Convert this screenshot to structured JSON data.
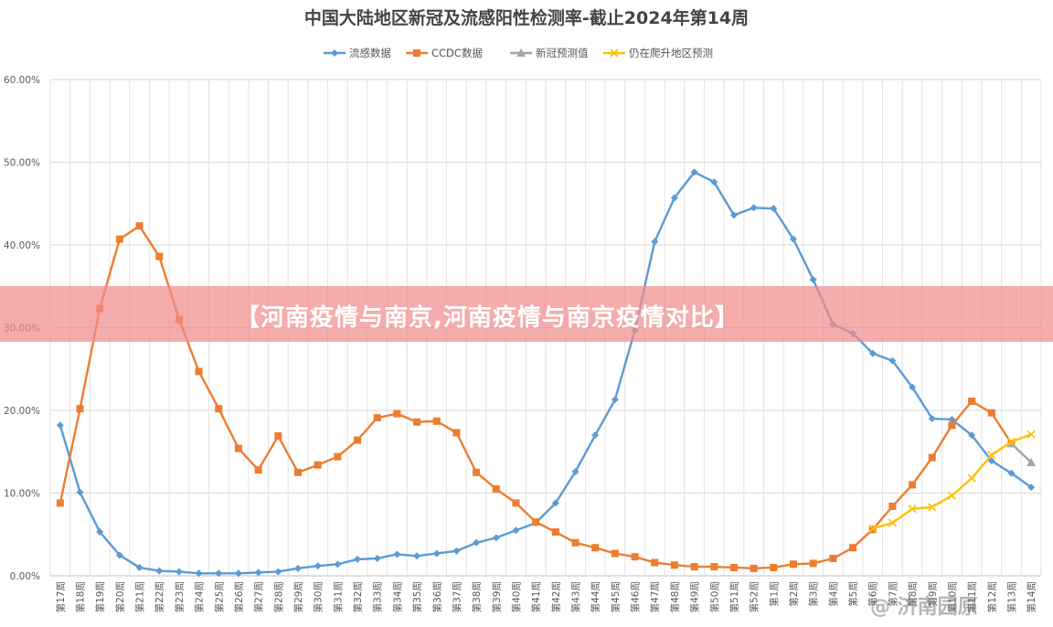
{
  "chart_data": {
    "type": "line",
    "title": "中国大陆地区新冠及流感阳性检测率-截止2024年第14周",
    "yticks": [
      "0.00%",
      "10.00%",
      "20.00%",
      "30.00%",
      "40.00%",
      "50.00%",
      "60.00%"
    ],
    "ylim": [
      0,
      60
    ],
    "grid": true,
    "legend_position": "top",
    "categories": [
      "第17周",
      "第18周",
      "第19周",
      "第20周",
      "第21周",
      "第22周",
      "第23周",
      "第24周",
      "第25周",
      "第26周",
      "第27周",
      "第28周",
      "第29周",
      "第30周",
      "第31周",
      "第32周",
      "第33周",
      "第34周",
      "第35周",
      "第36周",
      "第37周",
      "第38周",
      "第39周",
      "第40周",
      "第41周",
      "第42周",
      "第43周",
      "第44周",
      "第45周",
      "第46周",
      "第47周",
      "第48周",
      "第49周",
      "第50周",
      "第51周",
      "第52周",
      "第1周",
      "第2周",
      "第3周",
      "第4周",
      "第5周",
      "第6周",
      "第7周",
      "第8周",
      "第9周",
      "第10周",
      "第11周",
      "第12周",
      "第13周",
      "第14周"
    ],
    "series": [
      {
        "name": "流感数据",
        "color": "#5b9bd5",
        "marker": "diamond",
        "values": [
          18.2,
          10.1,
          5.3,
          2.5,
          1.0,
          0.6,
          0.5,
          0.3,
          0.3,
          0.3,
          0.4,
          0.5,
          0.9,
          1.2,
          1.4,
          2.0,
          2.1,
          2.6,
          2.4,
          2.7,
          3.0,
          4.0,
          4.6,
          5.5,
          6.4,
          8.8,
          12.6,
          17.0,
          21.3,
          29.7,
          40.4,
          45.7,
          48.8,
          47.6,
          43.6,
          44.5,
          44.4,
          40.7,
          35.8,
          30.4,
          29.3,
          26.9,
          26.0,
          22.8,
          19.0,
          18.9,
          17.0,
          13.9,
          12.4,
          10.7
        ]
      },
      {
        "name": "CCDC数据",
        "color": "#ed7d31",
        "marker": "square",
        "values": [
          8.8,
          20.2,
          32.3,
          40.7,
          42.3,
          38.6,
          31.0,
          24.7,
          20.2,
          15.4,
          12.8,
          16.9,
          12.5,
          13.4,
          14.4,
          16.4,
          19.1,
          19.6,
          18.6,
          18.7,
          17.3,
          12.5,
          10.5,
          8.8,
          6.5,
          5.3,
          4.0,
          3.4,
          2.7,
          2.3,
          1.6,
          1.3,
          1.1,
          1.1,
          1.0,
          0.9,
          1.0,
          1.4,
          1.5,
          2.1,
          3.4,
          5.6,
          8.4,
          11.0,
          14.3,
          18.2,
          21.1,
          19.7,
          16.0,
          null
        ]
      },
      {
        "name": "新冠预测值",
        "color": "#a5a5a5",
        "marker": "triangle",
        "values": [
          null,
          null,
          null,
          null,
          null,
          null,
          null,
          null,
          null,
          null,
          null,
          null,
          null,
          null,
          null,
          null,
          null,
          null,
          null,
          null,
          null,
          null,
          null,
          null,
          null,
          null,
          null,
          null,
          null,
          null,
          null,
          null,
          null,
          null,
          null,
          null,
          null,
          null,
          null,
          null,
          null,
          null,
          null,
          null,
          null,
          null,
          null,
          null,
          16.0,
          13.7
        ]
      },
      {
        "name": "仍在爬升地区预测",
        "color": "#ffc000",
        "marker": "x",
        "values": [
          null,
          null,
          null,
          null,
          null,
          null,
          null,
          null,
          null,
          null,
          null,
          null,
          null,
          null,
          null,
          null,
          null,
          null,
          null,
          null,
          null,
          null,
          null,
          null,
          null,
          null,
          null,
          null,
          null,
          null,
          null,
          null,
          null,
          null,
          null,
          null,
          null,
          null,
          null,
          null,
          null,
          5.7,
          6.4,
          8.1,
          8.3,
          9.7,
          11.8,
          14.6,
          16.2,
          17.1
        ]
      }
    ]
  },
  "banner": {
    "text": "【河南疫情与南京,河南疫情与南京疫情对比】"
  },
  "watermark": {
    "text": "@ 济南园原"
  }
}
